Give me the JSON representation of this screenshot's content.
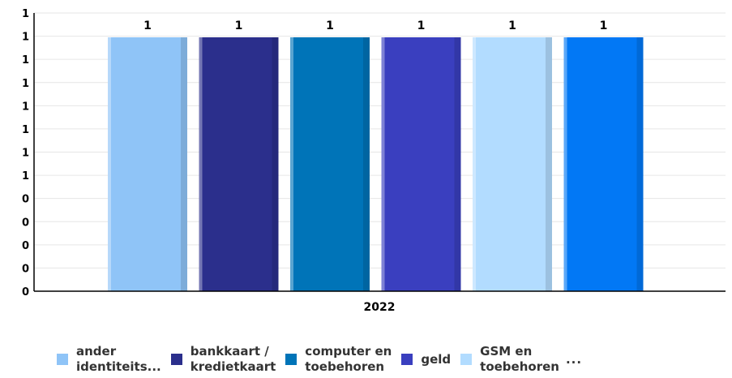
{
  "chart_data": {
    "type": "bar",
    "title": "",
    "xlabel": "",
    "ylabel": "",
    "categories": [
      "2022"
    ],
    "y_tick_labels": [
      "0",
      "0",
      "0",
      "0",
      "0",
      "1",
      "1",
      "1",
      "1",
      "1",
      "1",
      "1",
      "1"
    ],
    "ylim": [
      0,
      1
    ],
    "grid": true,
    "legend_position": "bottom",
    "series": [
      {
        "name": "ander identiteits...",
        "values": [
          1
        ],
        "color": "#8fc4f7"
      },
      {
        "name": "bankkaart / kredietkaart",
        "values": [
          1
        ],
        "color": "#2b2f8c"
      },
      {
        "name": "computer en toebehoren",
        "values": [
          1
        ],
        "color": "#0074b8"
      },
      {
        "name": "geld",
        "values": [
          1
        ],
        "color": "#3a3fbf"
      },
      {
        "name": "GSM en toebehoren",
        "values": [
          1
        ],
        "color": "#b2dcff"
      },
      {
        "name": "",
        "values": [
          1
        ],
        "color": "#0278f5"
      }
    ],
    "data_labels": [
      "1",
      "1",
      "1",
      "1",
      "1",
      "1"
    ]
  },
  "legend": {
    "items": [
      {
        "label": "ander\nidentiteits...",
        "color": "#8fc4f7"
      },
      {
        "label": "bankkaart /\nkredietkaart",
        "color": "#2b2f8c"
      },
      {
        "label": "computer en\ntoebehoren",
        "color": "#0074b8"
      },
      {
        "label": "geld",
        "color": "#3a3fbf"
      },
      {
        "label": "GSM en\ntoebehoren",
        "color": "#b2dcff"
      }
    ],
    "more": "..."
  }
}
